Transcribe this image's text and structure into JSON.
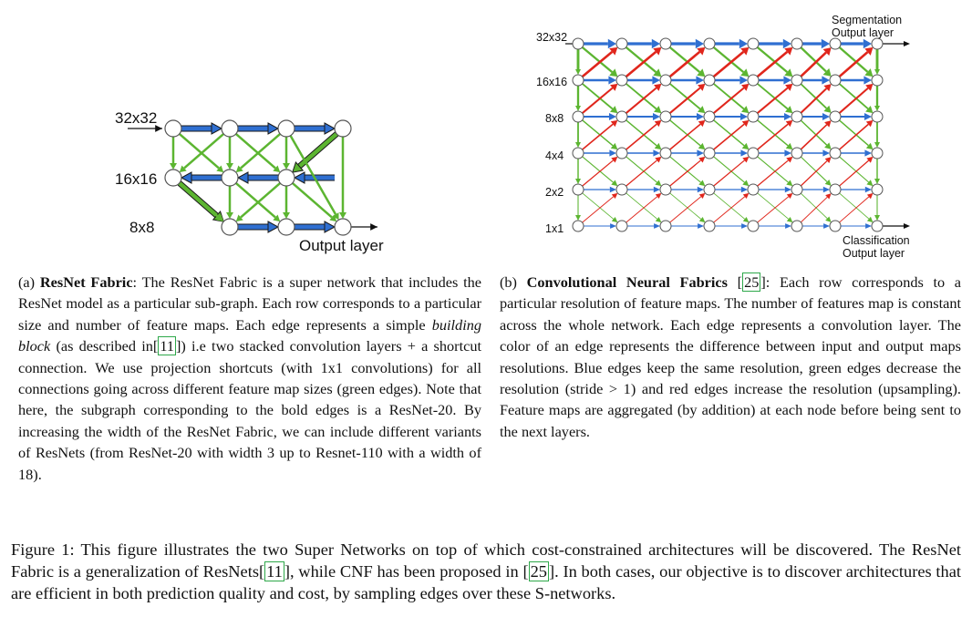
{
  "figure_a": {
    "labels": {
      "row1": "32x32",
      "row2": "16x16",
      "row3": "8x8",
      "output": "Output layer"
    },
    "caption": {
      "tag": "(a)",
      "title": "ResNet Fabric",
      "part1": ": The ResNet Fabric is a super network that includes the ResNet model as a particular sub-graph. Each row corresponds to a particular size and number of feature maps. Each edge represents a simple ",
      "italic": "building block",
      "part2": " (as described in[",
      "ref1": "11",
      "part3": "]) i.e two stacked convolution layers + a shortcut connection. We use projection shortcuts (with 1x1 convolutions) for all connections going across different feature map sizes (green edges). Note that here, the subgraph corresponding to the bold edges is a ResNet-20. By increasing the width of the ResNet Fabric, we can include different variants of ResNets (from ResNet-20 with width 3 up to Resnet-110 with a width of 18)."
    }
  },
  "figure_b": {
    "labels": {
      "rows": [
        "32x32",
        "16x16",
        "8x8",
        "4x4",
        "2x2",
        "1x1"
      ],
      "seg_output_1": "Segmentation",
      "seg_output_2": "Output layer",
      "cls_output_1": "Classification",
      "cls_output_2": "Output layer"
    },
    "caption": {
      "tag": "(b)",
      "title": "Convolutional Neural Fabrics",
      "ref1": "25",
      "part1": ": Each row corresponds to a particular resolution of feature maps. The number of features map is constant across the whole network. Each edge represents a convolution layer. The color of an edge represents the difference between input and output maps resolutions. Blue edges keep the same resolution, green edges decrease the resolution (stride > 1) and red edges increase the resolution (upsampling). Feature maps are aggregated (by addition) at each node before being sent to the next layers."
    }
  },
  "main_caption": {
    "part1": "Figure 1: This figure illustrates the two Super Networks on top of which cost-constrained architectures will be discovered. The ResNet Fabric is a generalization of ResNets[",
    "ref1": "11",
    "part2": "], while CNF has been proposed in [",
    "ref2": "25",
    "part3": "]. In both cases, our objective is to discover architectures that are efficient in both prediction quality and cost, by sampling edges over these S-networks."
  },
  "colors": {
    "blue": "#2f6fd1",
    "green": "#5cb531",
    "red": "#e0261c",
    "node_stroke": "#555555"
  }
}
